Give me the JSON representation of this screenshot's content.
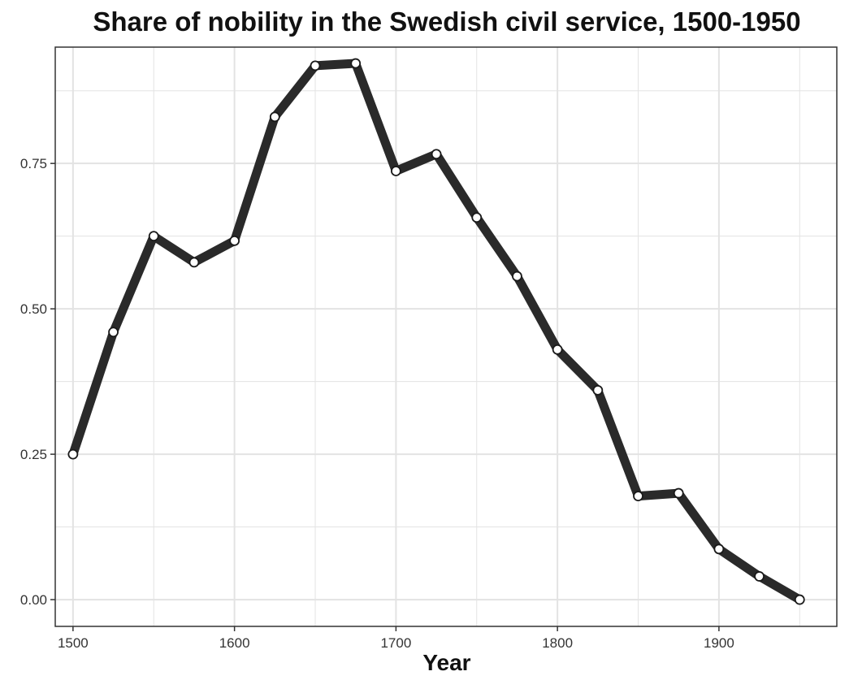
{
  "chart_data": {
    "type": "line",
    "title": "Share of nobility in the Swedish civil service, 1500-1950",
    "xlabel": "Year",
    "ylabel": "",
    "x": [
      1500,
      1525,
      1550,
      1575,
      1600,
      1625,
      1650,
      1675,
      1700,
      1725,
      1750,
      1775,
      1800,
      1825,
      1850,
      1875,
      1900,
      1925,
      1950
    ],
    "series": [
      {
        "values": [
          0.25,
          0.46,
          0.625,
          0.58,
          0.617,
          0.83,
          0.918,
          0.922,
          0.737,
          0.766,
          0.657,
          0.556,
          0.43,
          0.36,
          0.178,
          0.183,
          0.087,
          0.04,
          0.0
        ]
      }
    ],
    "xlim": [
      1489,
      1973
    ],
    "ylim": [
      -0.046,
      0.95
    ],
    "xticks": [
      1500,
      1600,
      1700,
      1800,
      1900
    ],
    "yticks": [
      0.0,
      0.25,
      0.5,
      0.75
    ],
    "xtick_labels": [
      "1500",
      "1600",
      "1700",
      "1800",
      "1900"
    ],
    "ytick_labels": [
      "0.00",
      "0.25",
      "0.50",
      "0.75"
    ],
    "grid": true,
    "line_color": "#2a2a2a",
    "marker_fill": "#ffffff",
    "marker_edge": "#1a1a1a",
    "grid_color": "#e3e3e3",
    "panel_border_color": "#333333"
  }
}
